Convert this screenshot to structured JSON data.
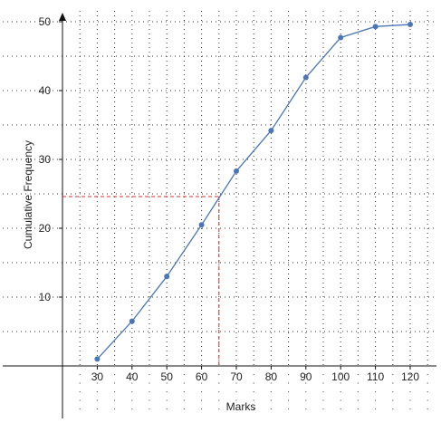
{
  "chart_data": {
    "type": "line",
    "title": "",
    "xlabel": "Marks",
    "ylabel": "Cumulative Frequency",
    "xlim": [
      20,
      122
    ],
    "ylim": [
      -3,
      51
    ],
    "x_ticks": [
      30,
      40,
      50,
      60,
      70,
      80,
      90,
      100,
      110,
      120
    ],
    "y_ticks": [
      10,
      20,
      30,
      40,
      50
    ],
    "grid": true,
    "legend": "none",
    "series": [
      {
        "color": "#4a76b8",
        "x": [
          30,
          40,
          50,
          60,
          70,
          80,
          90,
          100,
          110,
          120
        ],
        "y": [
          1,
          6.5,
          13,
          20.5,
          28.3,
          34.2,
          41.9,
          47.7,
          49.3,
          49.6
        ]
      }
    ],
    "annotations": [
      {
        "type": "dashed-guide",
        "color": "#dd2b2b",
        "x": 65,
        "y": 24.6
      }
    ]
  }
}
